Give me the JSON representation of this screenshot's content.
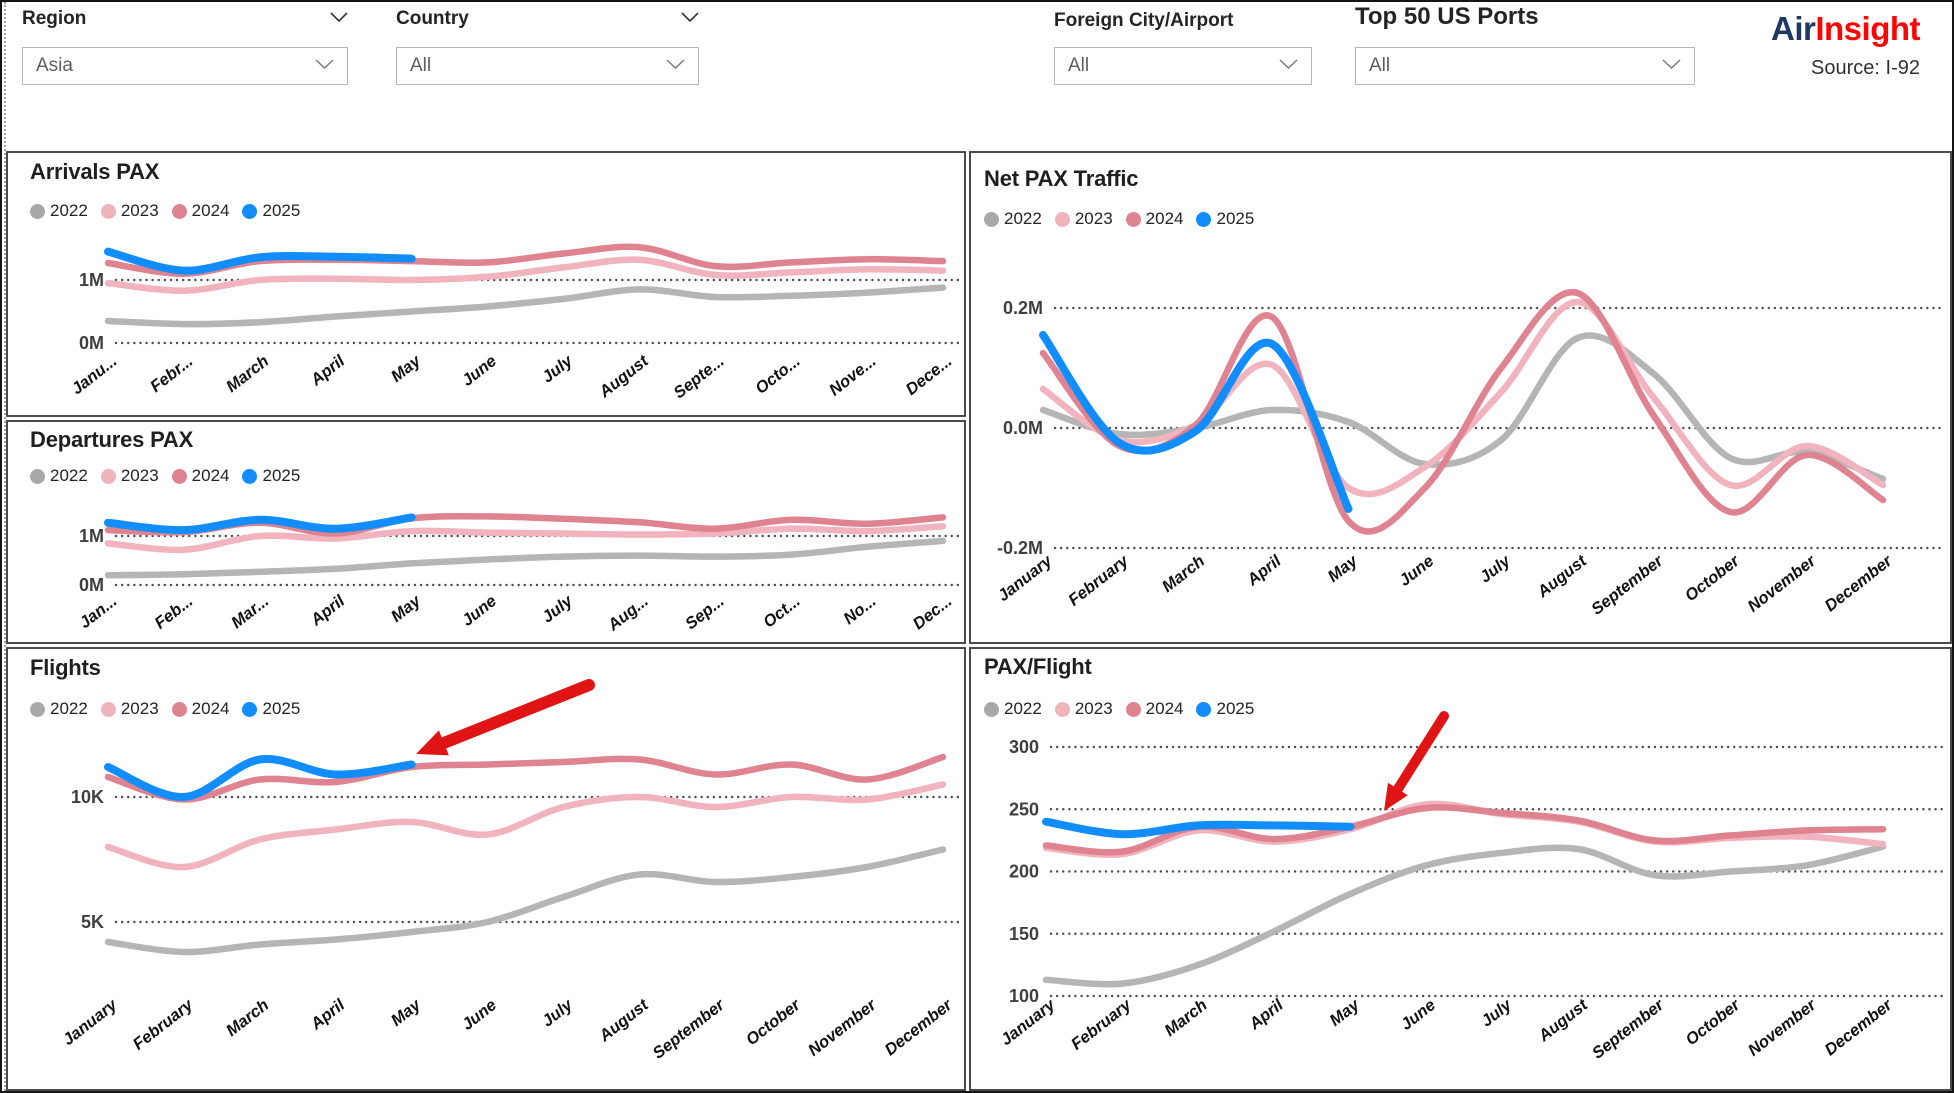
{
  "filters": {
    "region": {
      "label": "Region",
      "value": "Asia"
    },
    "country": {
      "label": "Country",
      "value": "All"
    },
    "foreign_city_airport": {
      "label": "Foreign City/Airport",
      "value": "All"
    },
    "top_50_us_ports": {
      "label": "Top 50 US Ports",
      "value": "All"
    }
  },
  "brand": {
    "name_part1": "Air",
    "name_part2": "Insight",
    "source": "Source: I-92"
  },
  "legend": {
    "years": [
      "2022",
      "2023",
      "2024",
      "2025"
    ]
  },
  "colors": {
    "series_2022": "#b5b5b5",
    "series_2023": "#f1b3bd",
    "series_2024": "#df8390",
    "series_2025": "#118DFF",
    "legend_2022": "#a8a8a8",
    "legend_2023": "#efb3bc",
    "legend_2024": "#de8491",
    "legend_2025": "#118DFF",
    "arrow": "#e01414",
    "brand_air": "#1f3864",
    "brand_insight": "#fe0505"
  },
  "chart_data": [
    {
      "id": "arrivals",
      "type": "line",
      "title": "Arrivals PAX",
      "x_labels": [
        "Janu...",
        "Febr...",
        "March",
        "April",
        "May",
        "June",
        "July",
        "August",
        "Septe...",
        "Octo...",
        "Nove...",
        "Dece..."
      ],
      "y_ticks": [
        {
          "label": "1M",
          "value": 1
        },
        {
          "label": "0M",
          "value": 0
        }
      ],
      "ylim": [
        0,
        1.75
      ],
      "grid": "dotted",
      "arrow_annotation": false,
      "series": [
        {
          "name": "2022",
          "values": [
            0.35,
            0.3,
            0.33,
            0.42,
            0.5,
            0.58,
            0.7,
            0.85,
            0.73,
            0.75,
            0.8,
            0.88
          ]
        },
        {
          "name": "2023",
          "values": [
            0.95,
            0.83,
            1.0,
            1.02,
            1.0,
            1.05,
            1.2,
            1.32,
            1.08,
            1.12,
            1.17,
            1.15
          ]
        },
        {
          "name": "2024",
          "values": [
            1.27,
            1.1,
            1.3,
            1.32,
            1.3,
            1.28,
            1.42,
            1.52,
            1.22,
            1.28,
            1.33,
            1.3
          ]
        },
        {
          "name": "2025",
          "values": [
            1.45,
            1.15,
            1.36,
            1.37,
            1.34
          ]
        }
      ]
    },
    {
      "id": "departures",
      "type": "line",
      "title": "Departures PAX",
      "x_labels": [
        "Jan...",
        "Feb...",
        "Mar...",
        "April",
        "May",
        "June",
        "July",
        "Aug...",
        "Sep...",
        "Oct...",
        "No...",
        "Dec..."
      ],
      "y_ticks": [
        {
          "label": "1M",
          "value": 1
        },
        {
          "label": "0M",
          "value": 0
        }
      ],
      "ylim": [
        0,
        1.75
      ],
      "grid": "dotted",
      "arrow_annotation": false,
      "series": [
        {
          "name": "2022",
          "values": [
            0.2,
            0.22,
            0.27,
            0.33,
            0.44,
            0.52,
            0.58,
            0.6,
            0.58,
            0.62,
            0.78,
            0.9
          ]
        },
        {
          "name": "2023",
          "values": [
            0.85,
            0.72,
            1.0,
            0.95,
            1.1,
            1.07,
            1.05,
            1.03,
            1.05,
            1.15,
            1.1,
            1.2
          ]
        },
        {
          "name": "2024",
          "values": [
            1.12,
            1.08,
            1.27,
            1.05,
            1.36,
            1.4,
            1.35,
            1.28,
            1.15,
            1.33,
            1.25,
            1.38
          ]
        },
        {
          "name": "2025",
          "values": [
            1.27,
            1.12,
            1.33,
            1.15,
            1.38
          ]
        }
      ]
    },
    {
      "id": "net",
      "type": "line",
      "title": "Net PAX Traffic",
      "x_labels": [
        "January",
        "February",
        "March",
        "April",
        "May",
        "June",
        "July",
        "August",
        "September",
        "October",
        "November",
        "December"
      ],
      "y_ticks": [
        {
          "label": "0.2M",
          "value": 0.2
        },
        {
          "label": "0.0M",
          "value": 0
        },
        {
          "label": "-0.2M",
          "value": -0.2
        }
      ],
      "ylim": [
        -0.25,
        0.25
      ],
      "grid": "dotted",
      "arrow_annotation": false,
      "series": [
        {
          "name": "2022",
          "values": [
            0.03,
            -0.01,
            0.0,
            0.03,
            0.01,
            -0.06,
            -0.02,
            0.15,
            0.09,
            -0.05,
            -0.04,
            -0.085
          ]
        },
        {
          "name": "2023",
          "values": [
            0.065,
            -0.02,
            0.005,
            0.105,
            -0.1,
            -0.065,
            0.06,
            0.21,
            0.05,
            -0.095,
            -0.03,
            -0.095
          ]
        },
        {
          "name": "2024",
          "values": [
            0.125,
            -0.03,
            0.005,
            0.185,
            -0.155,
            -0.1,
            0.1,
            0.225,
            0.02,
            -0.14,
            -0.045,
            -0.12
          ]
        },
        {
          "name": "2025",
          "values": [
            0.155,
            -0.025,
            -0.005,
            0.14,
            -0.135
          ]
        }
      ]
    },
    {
      "id": "flights",
      "type": "line",
      "title": "Flights",
      "x_labels": [
        "January",
        "February",
        "March",
        "April",
        "May",
        "June",
        "July",
        "August",
        "September",
        "October",
        "November",
        "December"
      ],
      "y_ticks": [
        {
          "label": "10K",
          "value": 10
        },
        {
          "label": "5K",
          "value": 5
        }
      ],
      "ylim": [
        3,
        13
      ],
      "grid": "dotted",
      "arrow_annotation": true,
      "series": [
        {
          "name": "2022",
          "values": [
            4.2,
            3.8,
            4.1,
            4.3,
            4.6,
            5.0,
            6.0,
            6.9,
            6.6,
            6.8,
            7.2,
            7.9
          ]
        },
        {
          "name": "2023",
          "values": [
            8.0,
            7.2,
            8.3,
            8.7,
            9.0,
            8.5,
            9.6,
            10.0,
            9.6,
            10.0,
            9.9,
            10.5
          ]
        },
        {
          "name": "2024",
          "values": [
            10.8,
            9.9,
            10.7,
            10.6,
            11.2,
            11.3,
            11.4,
            11.5,
            10.9,
            11.3,
            10.7,
            11.6
          ]
        },
        {
          "name": "2025",
          "values": [
            11.2,
            10.0,
            11.5,
            10.9,
            11.3
          ]
        }
      ]
    },
    {
      "id": "paxflight",
      "type": "line",
      "title": "PAX/Flight",
      "x_labels": [
        "January",
        "February",
        "March",
        "April",
        "May",
        "June",
        "July",
        "August",
        "September",
        "October",
        "November",
        "December"
      ],
      "y_ticks": [
        {
          "label": "300",
          "value": 300
        },
        {
          "label": "250",
          "value": 250
        },
        {
          "label": "200",
          "value": 200
        },
        {
          "label": "150",
          "value": 150
        },
        {
          "label": "100",
          "value": 100
        }
      ],
      "ylim": [
        90,
        310
      ],
      "grid": "dotted",
      "arrow_annotation": true,
      "series": [
        {
          "name": "2022",
          "values": [
            113,
            110,
            125,
            152,
            182,
            205,
            215,
            218,
            197,
            200,
            205,
            220
          ]
        },
        {
          "name": "2023",
          "values": [
            219,
            214,
            233,
            224,
            234,
            254,
            246,
            240,
            224,
            227,
            228,
            222
          ]
        },
        {
          "name": "2024",
          "values": [
            221,
            216,
            236,
            226,
            236,
            251,
            247,
            241,
            225,
            229,
            233,
            234
          ]
        },
        {
          "name": "2025",
          "values": [
            240,
            230,
            237,
            237,
            236
          ]
        }
      ]
    }
  ]
}
